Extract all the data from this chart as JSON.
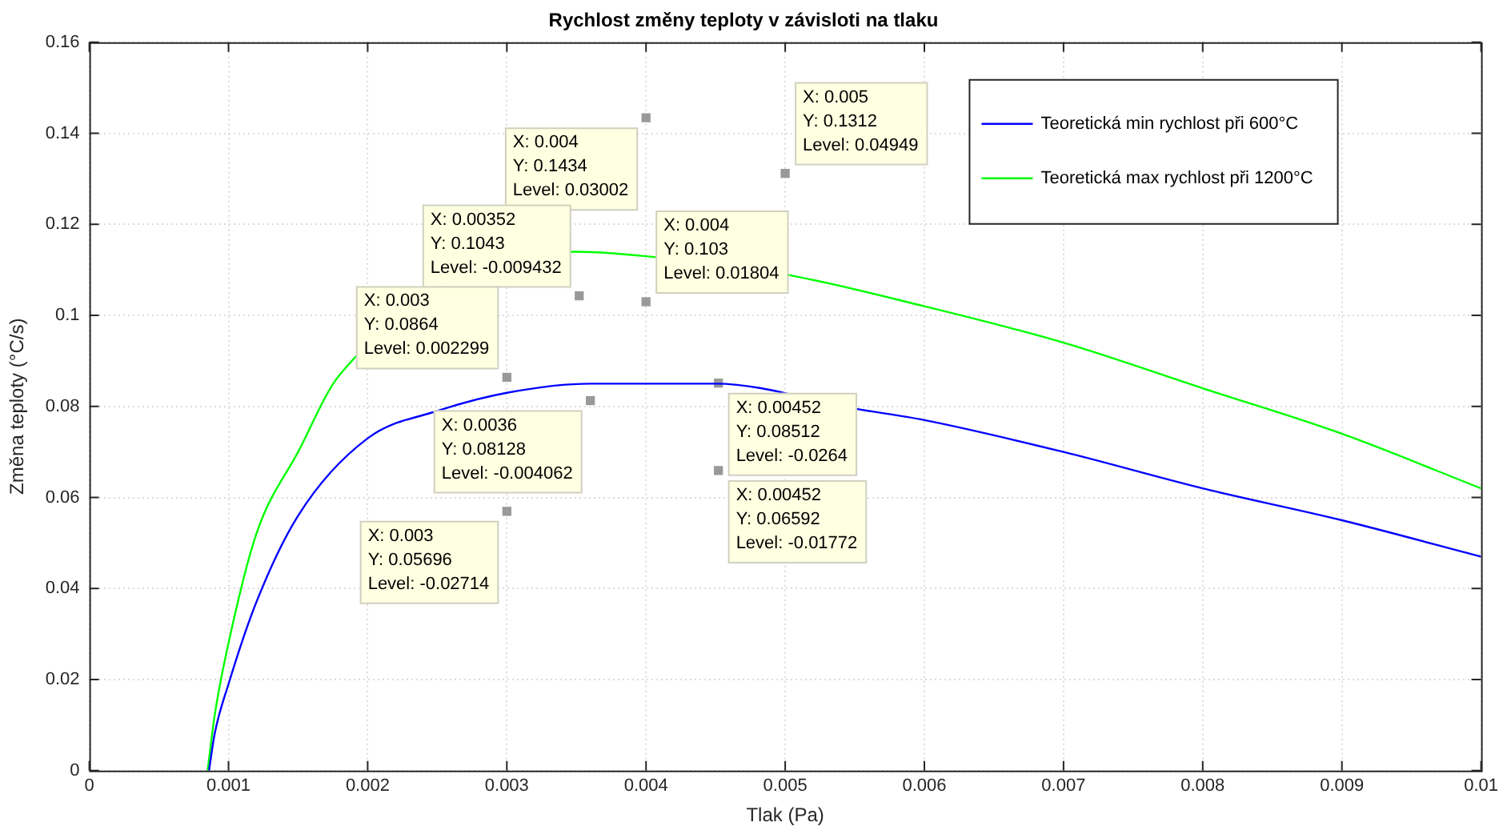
{
  "chart_data": {
    "type": "line",
    "title": "Rychlost změny teploty v závisloti na tlaku",
    "xlabel": "Tlak (Pa)",
    "ylabel": "Změna teploty (°C/s)",
    "xlim": [
      0,
      0.01
    ],
    "xticks": [
      0,
      0.001,
      0.002,
      0.003,
      0.004,
      0.005,
      0.006,
      0.007,
      0.008,
      0.009,
      0.01
    ],
    "ylim": [
      0,
      0.16
    ],
    "yticks": [
      0,
      0.02,
      0.04,
      0.06,
      0.08,
      0.1,
      0.12,
      0.14,
      0.16
    ],
    "grid": true,
    "legend": "top right",
    "line_style": "solid",
    "marker": "none",
    "series": [
      {
        "name": "Teoretická min rychlost při 600°C",
        "color": "#0000ff",
        "x": [
          0.00086,
          0.0009,
          0.001,
          0.0012,
          0.0015,
          0.002,
          0.0025,
          0.003,
          0.0036,
          0.0045,
          0.0055,
          0.006,
          0.007,
          0.008,
          0.009,
          0.01
        ],
        "values": [
          0,
          0.008,
          0.019,
          0.037,
          0.056,
          0.073,
          0.079,
          0.083,
          0.085,
          0.085,
          0.0795,
          0.077,
          0.07,
          0.062,
          0.055,
          0.047
        ]
      },
      {
        "name": "Teoretická max rychlost při 1200°C",
        "color": "#00ff00",
        "x": [
          0.00085,
          0.0009,
          0.001,
          0.0012,
          0.0015,
          0.0018,
          0.0035,
          0.004,
          0.005,
          0.006,
          0.007,
          0.008,
          0.009,
          0.01
        ],
        "values": [
          0,
          0.012,
          0.028,
          0.052,
          0.07,
          0.087,
          0.114,
          0.113,
          0.109,
          0.102,
          0.094,
          0.084,
          0.074,
          0.062
        ]
      },
      {
        "type": "scatter",
        "marker": "square",
        "color": "#999999",
        "x": [
          0.004,
          0.005,
          0.00352,
          0.004,
          0.003,
          0.0036,
          0.00452,
          0.00452,
          0.003
        ],
        "values": [
          0.1434,
          0.1312,
          0.1043,
          0.103,
          0.0864,
          0.08128,
          0.08512,
          0.06592,
          0.05696
        ]
      }
    ],
    "annotations": [
      {
        "text": "X: 0.004\nY: 0.1434\nLevel: 0.03002",
        "x": 0.004,
        "y": 0.1434
      },
      {
        "text": "X: 0.005\nY: 0.1312\nLevel: 0.04949",
        "x": 0.005,
        "y": 0.1312
      },
      {
        "text": "X: 0.00352\nY: 0.1043\nLevel: -0.009432",
        "x": 0.00352,
        "y": 0.1043
      },
      {
        "text": "X: 0.004\nY: 0.103\nLevel: 0.01804",
        "x": 0.004,
        "y": 0.103
      },
      {
        "text": "X: 0.003\nY: 0.0864\nLevel: 0.002299",
        "x": 0.003,
        "y": 0.0864
      },
      {
        "text": "X: 0.0036\nY: 0.08128\nLevel: -0.004062",
        "x": 0.0036,
        "y": 0.08128
      },
      {
        "text": "X: 0.00452\nY: 0.08512\nLevel: -0.0264",
        "x": 0.00452,
        "y": 0.08512
      },
      {
        "text": "X: 0.00452\nY: 0.06592\nLevel: -0.01772",
        "x": 0.00452,
        "y": 0.06592
      },
      {
        "text": "X: 0.003\nY: 0.05696\nLevel: -0.02714",
        "x": 0.003,
        "y": 0.05696
      }
    ]
  }
}
